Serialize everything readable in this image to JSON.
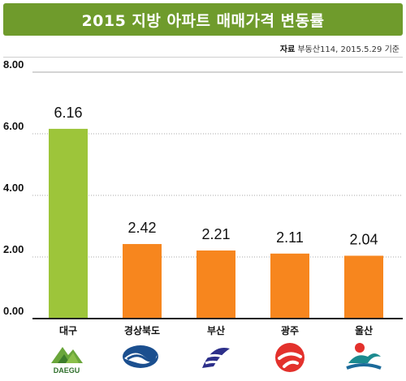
{
  "title": "2015 지방 아파트 매매가격 변동률",
  "source": {
    "label": "자료",
    "text": "부동산114, 2015.5.29 기준"
  },
  "colors": {
    "title_bg": "#6f9b2c",
    "highlight": "#9dc53a",
    "bar": "#f7861e",
    "axis": "#222222",
    "grid": "#aaaaaa"
  },
  "chart_data": {
    "type": "bar",
    "title": "2015 지방 아파트 매매가격 변동률",
    "xlabel": "",
    "ylabel": "",
    "categories": [
      "대구",
      "경상북도",
      "부산",
      "광주",
      "울산"
    ],
    "values": [
      6.16,
      2.42,
      2.21,
      2.11,
      2.04
    ],
    "value_labels": [
      "6.16",
      "2.42",
      "2.21",
      "2.11",
      "2.04"
    ],
    "highlight_index": 0,
    "ylim": [
      0,
      8
    ],
    "yticks": [
      "0.00",
      "2.00",
      "4.00",
      "6.00",
      "8.00"
    ],
    "ytick_values": [
      0,
      2,
      4,
      6,
      8
    ],
    "grid": true,
    "legend": "none"
  },
  "logos": [
    {
      "icon": "daegu-emblem-icon",
      "text": "DAEGU"
    },
    {
      "icon": "gyeongbuk-emblem-icon"
    },
    {
      "icon": "busan-emblem-icon"
    },
    {
      "icon": "gwangju-emblem-icon"
    },
    {
      "icon": "ulsan-emblem-icon"
    }
  ]
}
